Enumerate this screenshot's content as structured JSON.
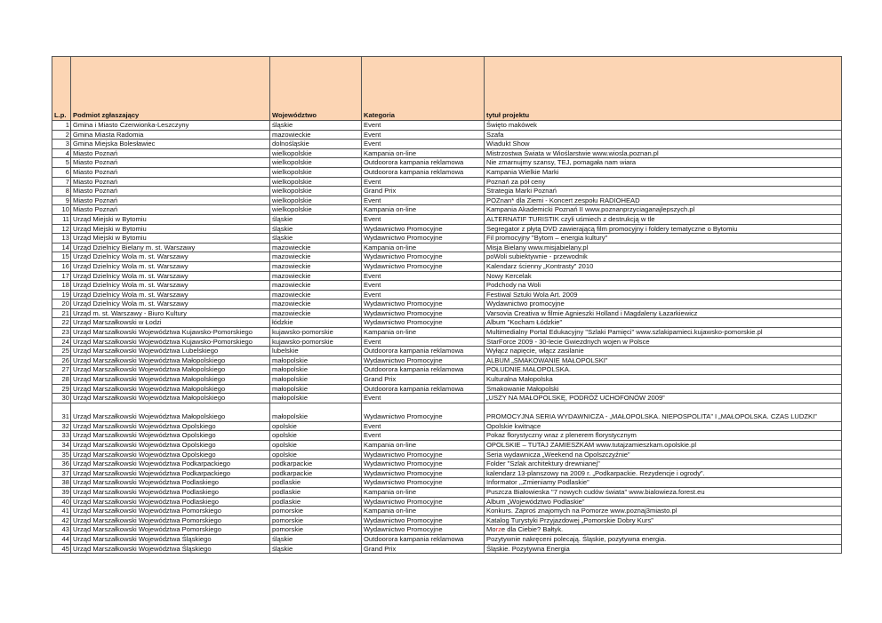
{
  "columns": [
    "L.p.",
    "Podmiot zgłaszający",
    "Województwo",
    "Kategoria",
    "tytuł projektu"
  ],
  "accent_header_bg": "#fcd5b4",
  "rows": [
    [
      "1",
      "Gmina i Miasto Czerwionka-Leszczyny",
      "śląskie",
      "Event",
      "Święto makówek"
    ],
    [
      "2",
      "Gmina Miasta Radomia",
      "mazowieckie",
      "Event",
      "Szafa"
    ],
    [
      "3",
      "Gmina Miejska Bolesławiec",
      "dolnośląskie",
      "Event",
      "Wiadukt Show"
    ],
    [
      "4",
      "Miasto Poznań",
      "wielkopolskie",
      "Kampania on-line",
      "Mistrzostwa Świata w Wioślarstwie www.wiosla.poznan.pl"
    ],
    [
      "5",
      "Miasto Poznań",
      "wielkopolskie",
      "Outdoorora kampania reklamowa",
      "Nie zmarnujmy szansy, TEJ, pomagała nam wiara"
    ],
    [
      "6",
      "Miasto Poznań",
      "wielkopolskie",
      "Outdoorora kampania reklamowa",
      "Kampania Wielkie Marki"
    ],
    [
      "7",
      "Miasto Poznań",
      "wielkopolskie",
      "Event",
      "Poznań za pół ceny"
    ],
    [
      "8",
      "Miasto Poznań",
      "wielkopolskie",
      "Grand Prix",
      "Strategia Marki Poznań"
    ],
    [
      "9",
      "Miasto Poznań",
      "wielkopolskie",
      "Event",
      "POZnan* dla Ziemi - Koncert zespołu RADIOHEAD"
    ],
    [
      "10",
      "Miasto Poznań",
      "wielkopolskie",
      "Kampania on-line",
      "Kampania Akademicki Poznań II www.poznanprzyciaganajlepszych.pl"
    ],
    [
      "11",
      "Urząd Miejski w Bytomiu",
      "śląskie",
      "Event",
      "ALTERNATIF TURISTIK czyli uśmiech z destrukcją w tle"
    ],
    [
      "12",
      "Urząd Miejski w Bytomiu",
      "śląskie",
      "Wydawnictwo Promocyjne",
      "Segregator z płytą DVD zawierającą film promocyjny i foldery tematyczne o Bytomiu"
    ],
    [
      "13",
      "Urząd Miejski w Bytomiu",
      "śląskie",
      "Wydawnictwo Promocyjne",
      "Fil promocyjny \"Bytom – energia kultury\""
    ],
    [
      "14",
      "Urząd Dzielnicy Bielany m. st. Warszawy",
      "mazowieckie",
      "Kampania on-line",
      "Misja Bielany www.misjabielany.pl"
    ],
    [
      "15",
      "Urząd Dzielnicy Wola m. st. Warszawy",
      "mazowieckie",
      "Wydawnictwo Promocyjne",
      "poWoli subiektywnie - przewodnik"
    ],
    [
      "16",
      "Urząd Dzielnicy Wola m. st. Warszawy",
      "mazowieckie",
      "Wydawnictwo Promocyjne",
      "Kalendarz ścienny „Kontrasty” 2010"
    ],
    [
      "17",
      "Urząd Dzielnicy Wola m. st. Warszawy",
      "mazowieckie",
      "Event",
      "Nowy Kercelak"
    ],
    [
      "18",
      "Urząd Dzielnicy Wola m. st. Warszawy",
      "mazowieckie",
      "Event",
      "Podchody na Woli"
    ],
    [
      "19",
      "Urząd Dzielnicy Wola m. st. Warszawy",
      "mazowieckie",
      "Event",
      "Festiwal Sztuki Wola Art. 2009"
    ],
    [
      "20",
      "Urząd Dzielnicy Wola m. st. Warszawy",
      "mazowieckie",
      "Wydawnictwo Promocyjne",
      "Wydawnictwo promocyjne"
    ],
    [
      "21",
      "Urząd m. st. Warszawy - Biuro Kultury",
      "mazowieckie",
      "Wydawnictwo Promocyjne",
      "Varsovia Creativa w filmie Agnieszki Holland  i Magdaleny Łazarkiewicz"
    ],
    [
      "22",
      "Urząd Marszałkowski w Łodzi",
      "łódzkie",
      "Wydawnictwo Promocyjne",
      "Album \"Kocham Łódzkie\""
    ],
    [
      "23",
      "Urząd Marszałkowski Województwa Kujawsko-Pomorskiego",
      "kujawsko-pomorskie",
      "Kampania on-line",
      "Multimedialny Portal Edukacyjny \"Szlaki Pamięci\" www.szlakipamieci.kujawsko-pomorskie.pl"
    ],
    [
      "24",
      "Urząd Marszałkowski Województwa Kujawsko-Pomorskiego",
      "kujawsko-pomorskie",
      "Event",
      "StarForce 2009 - 30-lecie Gwiezdnych wojen w Polsce"
    ],
    [
      "25",
      "Urząd Marszałkowski Województwa Lubelskiego",
      "lubelskie",
      "Outdoorora kampania reklamowa",
      "Wyłącz napięcie, włącz zasilanie"
    ],
    [
      "26",
      "Urząd Marszałkowski Województwa Małopolskiego",
      "małopolskie",
      "Wydawnictwo Promocyjne",
      "ALBUM „SMAKOWANIE MAŁOPOLSKI”"
    ],
    [
      "27",
      "Urząd Marszałkowski Województwa Małopolskiego",
      "małopolskie",
      "Outdoorora kampania reklamowa",
      "POŁUDNIE.MAŁOPOLSKA."
    ],
    [
      "28",
      "Urząd Marszałkowski Województwa Małopolskiego",
      "małopolskie",
      "Grand Prix",
      "Kulturalna Małopolska"
    ],
    [
      "29",
      "Urząd Marszałkowski Województwa Małopolskiego",
      "małopolskie",
      "Outdoorora kampania reklamowa",
      "Smakowanie Małopolski"
    ],
    [
      "30",
      "Urząd Marszałkowski Województwa Małopolskiego",
      "małopolskie",
      "Event",
      "„USZY NA MAŁOPOLSKĘ, PODRÓŻ UCHOFONÓW 2009”"
    ],
    [
      "31",
      "Urząd Marszałkowski Województwa Małopolskiego",
      "małopolskie",
      "Wydawnictwo Promocyjne",
      "PROMOCYJNA SERIA WYDAWNICZA - „MAŁOPOLSKA. NIEPOSPOLITA” I „MAŁOPOLSKA. CZAS LUDZKI”"
    ],
    [
      "32",
      "Urząd Marszałkowski Województwa Opolskiego",
      "opolskie",
      "Event",
      "Opolskie kwitnące"
    ],
    [
      "33",
      "Urząd Marszałkowski Województwa Opolskiego",
      "opolskie",
      "Event",
      "Pokaz florystyczny wraz z plenerem florystycznym"
    ],
    [
      "34",
      "Urząd Marszałkowski Województwa Opolskiego",
      "opolskie",
      "Kampania on-line",
      "OPOLSKIE – TUTAJ ZAMIESZKAM www.tutajzamieszkam.opolskie.pl"
    ],
    [
      "35",
      "Urząd Marszałkowski Województwa Opolskiego",
      "opolskie",
      "Wydawnictwo Promocyjne",
      "Seria wydawnicza „Weekend na Opolszczyźnie”"
    ],
    [
      "36",
      "Urząd Marszałkowski Województwa Podkarpackiego",
      "podkarpackie",
      "Wydawnictwo Promocyjne",
      "Folder \"Szlak architektury drewnianej\""
    ],
    [
      "37",
      "Urząd Marszałkowski Województwa Podkarpackiego",
      "podkarpackie",
      "Wydawnictwo Promocyjne",
      "kalendarz 13-planszowy na 2009 r. „Podkarpackie. Rezydencje i ogrody”."
    ],
    [
      "38",
      "Urząd Marszałkowski Województwa Podlaskiego",
      "podlaskie",
      "Wydawnictwo Promocyjne",
      "Informator ,,Zmieniamy Podlaskie”"
    ],
    [
      "39",
      "Urząd Marszałkowski Województwa Podlaskiego",
      "podlaskie",
      "Kampania on-line",
      "Puszcza Białowieska \"7 nowych cudów świata\" www.bialowieza.forest.eu"
    ],
    [
      "40",
      "Urząd Marszałkowski Województwa Podlaskiego",
      "podlaskie",
      "Wydawnictwo Promocyjne",
      "Album „Województwo Podlaskie”"
    ],
    [
      "41",
      "Urząd Marszałkowski Województwa Pomorskiego",
      "pomorskie",
      "Kampania on-line",
      "Konkurs. Zaproś znajomych na Pomorze www.poznaj3miasto.pl"
    ],
    [
      "42",
      "Urząd Marszałkowski Województwa Pomorskiego",
      "pomorskie",
      "Wydawnictwo Promocyjne",
      "Katalog Turystyki Przyjazdowej „Pomorskie Dobry Kurs”"
    ],
    [
      "43",
      "Urząd Marszałkowski Województwa Pomorskiego",
      "pomorskie",
      "Wydawnictwo Promocyjne",
      "Morze dla Ciebie? Bałtyk."
    ],
    [
      "44",
      "Urząd Marszałkowski Województwa Śląskiego",
      "śląskie",
      "Outdoorora kampania reklamowa",
      "Pozytywnie nakręceni polecają. Śląskie, pozytywna energia."
    ],
    [
      "45",
      "Urząd Marszałkowski Województwa Śląskiego",
      "śląskie",
      "Grand Prix",
      "Śląskie. Pozytywna Energia"
    ]
  ]
}
